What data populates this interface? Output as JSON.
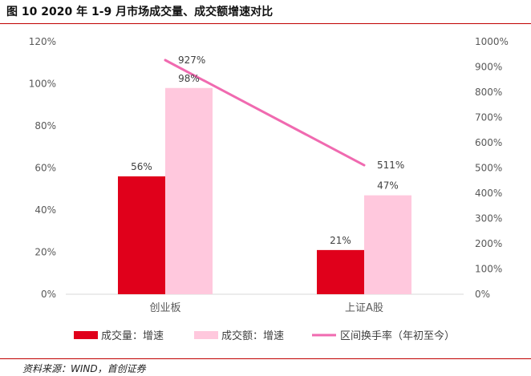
{
  "figure": {
    "title": "图 10 2020 年 1-9 月市场成交量、成交额增速对比",
    "source": "资料来源：WIND，首创证券"
  },
  "colors": {
    "volume": "#e0001b",
    "amount": "#ffc8dd",
    "turnover": "#f06ab0",
    "rule": "#c00000"
  },
  "chart_data": {
    "type": "bar",
    "categories": [
      "创业板",
      "上证A股"
    ],
    "series": [
      {
        "name": "成交量：增速",
        "type": "bar",
        "axis": "left",
        "values": [
          56,
          21
        ],
        "labels": [
          "56%",
          "21%"
        ]
      },
      {
        "name": "成交额：增速",
        "type": "bar",
        "axis": "left",
        "values": [
          98,
          47
        ],
        "labels": [
          "98%",
          "47%"
        ]
      },
      {
        "name": "区间换手率（年初至今）",
        "type": "line",
        "axis": "right",
        "values": [
          927,
          511
        ],
        "labels": [
          "927%",
          "511%"
        ]
      }
    ],
    "y_left": {
      "range": [
        0,
        120
      ],
      "ticks": [
        "0%",
        "20%",
        "40%",
        "60%",
        "80%",
        "100%",
        "120%"
      ]
    },
    "y_right": {
      "range": [
        0,
        1000
      ],
      "ticks": [
        "0%",
        "100%",
        "200%",
        "300%",
        "400%",
        "500%",
        "600%",
        "700%",
        "800%",
        "900%",
        "1000%"
      ]
    },
    "grid": false,
    "legend_position": "bottom"
  }
}
